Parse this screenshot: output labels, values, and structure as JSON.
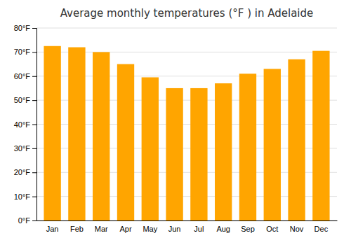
{
  "chart_data": {
    "type": "bar",
    "title": "Average monthly temperatures (°F ) in Adelaide",
    "categories": [
      "Jan",
      "Feb",
      "Mar",
      "Apr",
      "May",
      "Jun",
      "Jul",
      "Aug",
      "Sep",
      "Oct",
      "Nov",
      "Dec"
    ],
    "values": [
      72.5,
      72.0,
      70.0,
      65.0,
      59.5,
      55.0,
      55.0,
      57.0,
      61.0,
      63.0,
      67.0,
      70.5
    ],
    "color": "#FFA500",
    "ylim": [
      0,
      80
    ],
    "yticks": [
      {
        "value": 0,
        "label": "0°F"
      },
      {
        "value": 10,
        "label": "10°F"
      },
      {
        "value": 20,
        "label": "20°F"
      },
      {
        "value": 30,
        "label": "30°F"
      },
      {
        "value": 40,
        "label": "40°F"
      },
      {
        "value": 50,
        "label": "50°F"
      },
      {
        "value": 60,
        "label": "60°F"
      },
      {
        "value": 70,
        "label": "70°F"
      },
      {
        "value": 80,
        "label": "80°F"
      }
    ],
    "grid": true
  }
}
